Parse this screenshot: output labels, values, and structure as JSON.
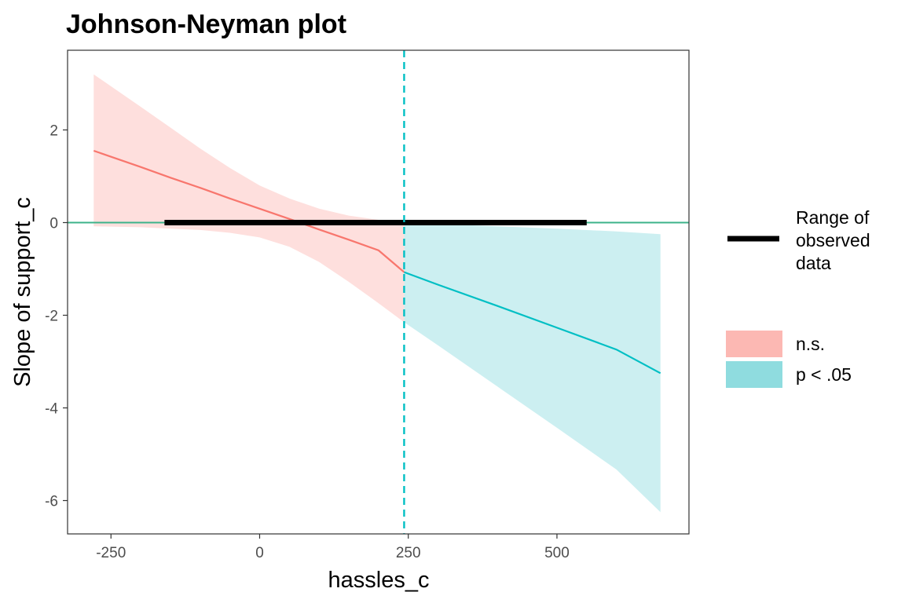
{
  "chart_data": {
    "type": "line",
    "title": "Johnson-Neyman plot",
    "xlabel": "hassles_c",
    "ylabel": "Slope of support_c",
    "xlim": [
      -323,
      722
    ],
    "ylim": [
      -6.72,
      3.72
    ],
    "x_ticks": [
      -250,
      0,
      250,
      500
    ],
    "y_ticks": [
      -6,
      -4,
      -2,
      0,
      2
    ],
    "grid": false,
    "legend_position": "right",
    "johnson_neyman_point": 243,
    "reference_line_y": 0,
    "x": [
      -279,
      -200,
      -150,
      -100,
      -50,
      0,
      50,
      100,
      150,
      200,
      243,
      300,
      400,
      500,
      600,
      674
    ],
    "slope": [
      1.55,
      1.2,
      0.97,
      0.75,
      0.52,
      0.3,
      0.08,
      -0.15,
      -0.37,
      -0.6,
      -1.07,
      -1.34,
      -1.8,
      -2.27,
      -2.74,
      -3.25
    ],
    "ci_lower": [
      -0.08,
      -0.1,
      -0.13,
      -0.16,
      -0.22,
      -0.32,
      -0.52,
      -0.85,
      -1.28,
      -1.74,
      -2.15,
      -2.65,
      -3.54,
      -4.43,
      -5.33,
      -6.25
    ],
    "ci_upper": [
      3.2,
      2.5,
      2.05,
      1.6,
      1.18,
      0.8,
      0.52,
      0.3,
      0.15,
      0.06,
      0.0,
      -0.03,
      -0.08,
      -0.13,
      -0.19,
      -0.25
    ],
    "observed_range": [
      -160,
      550
    ],
    "series": [
      {
        "name": "n.s.",
        "color": "#F8766D",
        "band_color": "#FCB8B3",
        "x_range": [
          -279,
          243
        ]
      },
      {
        "name": "p < .05",
        "color": "#00BFC4",
        "band_color": "#8FDCDF",
        "x_range": [
          243,
          674
        ]
      }
    ],
    "legend": {
      "range_label": [
        "Range of",
        "observed",
        "data"
      ],
      "items": [
        "n.s.",
        "p < .05"
      ]
    }
  }
}
